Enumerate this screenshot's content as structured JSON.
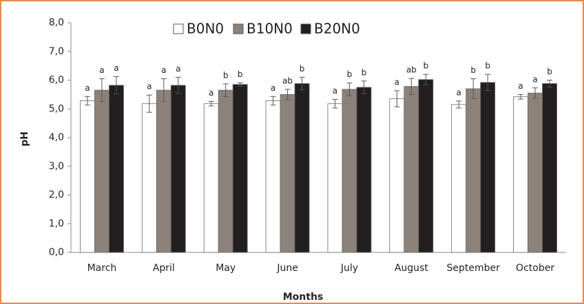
{
  "chart_data": {
    "type": "bar",
    "x_label": "Months",
    "y_label": "pH",
    "categories": [
      "March",
      "April",
      "May",
      "June",
      "July",
      "August",
      "September",
      "October"
    ],
    "series": [
      {
        "name": "B0N0",
        "color": "#ffffff",
        "values": [
          5.28,
          5.18,
          5.18,
          5.28,
          5.18,
          5.35,
          5.15,
          5.42
        ],
        "errors": [
          0.15,
          0.3,
          0.08,
          0.15,
          0.15,
          0.28,
          0.12,
          0.08
        ],
        "letters": [
          "a",
          "a",
          "a",
          "a",
          "a",
          "a",
          "a",
          "a"
        ]
      },
      {
        "name": "B10N0",
        "color": "#8c8279",
        "values": [
          5.65,
          5.65,
          5.65,
          5.5,
          5.68,
          5.78,
          5.7,
          5.55
        ],
        "errors": [
          0.4,
          0.4,
          0.22,
          0.18,
          0.22,
          0.28,
          0.35,
          0.18
        ],
        "letters": [
          "a",
          "a",
          "b",
          "ab",
          "b",
          "ab",
          "b",
          "a"
        ]
      },
      {
        "name": "B20N0",
        "color": "#231f20",
        "values": [
          5.82,
          5.82,
          5.85,
          5.88,
          5.75,
          6.02,
          5.92,
          5.88
        ],
        "errors": [
          0.3,
          0.28,
          0.06,
          0.22,
          0.22,
          0.18,
          0.28,
          0.12
        ],
        "letters": [
          "a",
          "a",
          "b",
          "b",
          "b",
          "b",
          "b",
          "b"
        ]
      }
    ],
    "ylim": [
      0,
      8
    ],
    "yticks": [
      {
        "value": 0,
        "label": "0,0"
      },
      {
        "value": 1,
        "label": "1,0"
      },
      {
        "value": 2,
        "label": "2,0"
      },
      {
        "value": 3,
        "label": "3,0"
      },
      {
        "value": 4,
        "label": "4,0"
      },
      {
        "value": 5,
        "label": "5,0"
      },
      {
        "value": 6,
        "label": "6,0"
      },
      {
        "value": 7,
        "label": "7,0"
      },
      {
        "value": 8,
        "label": "8,0"
      }
    ],
    "grid": false,
    "legend": "top"
  }
}
